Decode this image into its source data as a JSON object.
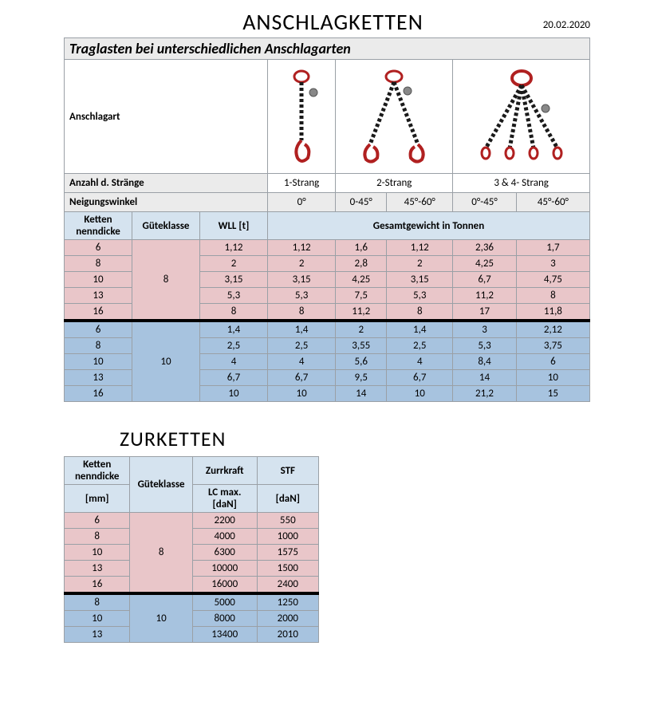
{
  "page": {
    "title1": "ANSCHLAGKETTEN",
    "date": "20.02.2020",
    "subtitle": "Traglasten bei unterschiedlichen Anschlagarten",
    "title2": "ZURKETTEN"
  },
  "labels": {
    "anschlagart": "Anschlagart",
    "anzahl": "Anzahl d. Stränge",
    "neigung": "Neigungswinkel",
    "ketten": "Ketten nenndicke",
    "guete": "Güteklasse",
    "wll": "WLL [t]",
    "gesamt": "Gesamtgewicht in Tonnen",
    "mm": "[mm]",
    "zurrkraft": "Zurrkraft",
    "stf": "STF",
    "lc": "LC max. [daN]",
    "dan": "[daN]"
  },
  "strands": {
    "s1": "1-Strang",
    "s2": "2-Strang",
    "s3": "3 & 4- Strang"
  },
  "angles": {
    "a0": "0°",
    "a1": "0-45°",
    "a2": "45°-60°",
    "a3": "0°-45°",
    "a4": "45°-60°"
  },
  "table1": {
    "group8": {
      "klasse": "8",
      "color": "#e9c6c9",
      "rows": [
        {
          "d": "6",
          "wll": "1,12",
          "v": [
            "1,12",
            "1,6",
            "1,12",
            "2,36",
            "1,7"
          ]
        },
        {
          "d": "8",
          "wll": "2",
          "v": [
            "2",
            "2,8",
            "2",
            "4,25",
            "3"
          ]
        },
        {
          "d": "10",
          "wll": "3,15",
          "v": [
            "3,15",
            "4,25",
            "3,15",
            "6,7",
            "4,75"
          ]
        },
        {
          "d": "13",
          "wll": "5,3",
          "v": [
            "5,3",
            "7,5",
            "5,3",
            "11,2",
            "8"
          ]
        },
        {
          "d": "16",
          "wll": "8",
          "v": [
            "8",
            "11,2",
            "8",
            "17",
            "11,8"
          ]
        }
      ]
    },
    "group10": {
      "klasse": "10",
      "color": "#a7c3df",
      "rows": [
        {
          "d": "6",
          "wll": "1,4",
          "v": [
            "1,4",
            "2",
            "1,4",
            "3",
            "2,12"
          ]
        },
        {
          "d": "8",
          "wll": "2,5",
          "v": [
            "2,5",
            "3,55",
            "2,5",
            "5,3",
            "3,75"
          ]
        },
        {
          "d": "10",
          "wll": "4",
          "v": [
            "4",
            "5,6",
            "4",
            "8,4",
            "6"
          ]
        },
        {
          "d": "13",
          "wll": "6,7",
          "v": [
            "6,7",
            "9,5",
            "6,7",
            "14",
            "10"
          ]
        },
        {
          "d": "16",
          "wll": "10",
          "v": [
            "10",
            "14",
            "10",
            "21,2",
            "15"
          ]
        }
      ]
    }
  },
  "table2": {
    "group8": {
      "klasse": "8",
      "color": "#e9c6c9",
      "rows": [
        {
          "d": "6",
          "lc": "2200",
          "stf": "550"
        },
        {
          "d": "8",
          "lc": "4000",
          "stf": "1000"
        },
        {
          "d": "10",
          "lc": "6300",
          "stf": "1575"
        },
        {
          "d": "13",
          "lc": "10000",
          "stf": "1500"
        },
        {
          "d": "16",
          "lc": "16000",
          "stf": "2400"
        }
      ]
    },
    "group10": {
      "klasse": "10",
      "color": "#a7c3df",
      "rows": [
        {
          "d": "8",
          "lc": "5000",
          "stf": "1250"
        },
        {
          "d": "10",
          "lc": "8000",
          "stf": "2000"
        },
        {
          "d": "13",
          "lc": "13400",
          "stf": "2010"
        }
      ]
    }
  },
  "svg": {
    "ring": "#b02020",
    "chain": "#1a1a1a",
    "hook": "#b02020"
  }
}
